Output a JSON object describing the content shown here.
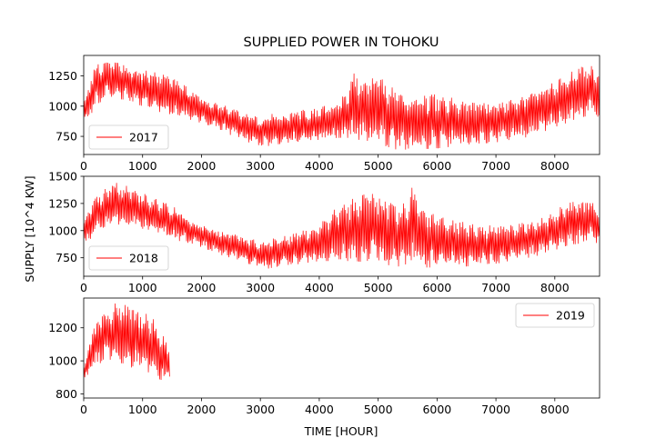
{
  "chart_data": {
    "type": "line",
    "title": "SUPPLIED POWER IN TOHOKU",
    "xlabel": "TIME [HOUR]",
    "ylabel": "SUPPLY [10^4 KW]",
    "line_color": "#ff0000",
    "panels": [
      {
        "series_name": "2017",
        "legend_position": "lower-left",
        "xlim": [
          0,
          8760
        ],
        "ylim": [
          600,
          1420
        ],
        "x_ticks": [
          0,
          1000,
          2000,
          3000,
          4000,
          5000,
          6000,
          7000,
          8000
        ],
        "y_ticks": [
          750,
          1000,
          1250
        ],
        "x_end": 8760,
        "envelope": [
          [
            0,
            820,
            1050
          ],
          [
            200,
            1000,
            1340
          ],
          [
            400,
            1080,
            1370
          ],
          [
            700,
            1050,
            1350
          ],
          [
            1000,
            1000,
            1300
          ],
          [
            1300,
            950,
            1270
          ],
          [
            1600,
            920,
            1210
          ],
          [
            2000,
            860,
            1080
          ],
          [
            2500,
            760,
            990
          ],
          [
            3000,
            660,
            920
          ],
          [
            3500,
            700,
            960
          ],
          [
            4000,
            720,
            980
          ],
          [
            4400,
            740,
            1080
          ],
          [
            4600,
            720,
            1280
          ],
          [
            4800,
            700,
            1210
          ],
          [
            5000,
            690,
            1250
          ],
          [
            5300,
            640,
            1130
          ],
          [
            5600,
            640,
            1080
          ],
          [
            6000,
            650,
            1100
          ],
          [
            6500,
            680,
            1040
          ],
          [
            7000,
            700,
            1030
          ],
          [
            7500,
            740,
            1090
          ],
          [
            8000,
            820,
            1200
          ],
          [
            8400,
            900,
            1320
          ],
          [
            8600,
            920,
            1340
          ],
          [
            8760,
            880,
            1280
          ]
        ]
      },
      {
        "series_name": "2018",
        "legend_position": "lower-left",
        "xlim": [
          0,
          8760
        ],
        "ylim": [
          580,
          1500
        ],
        "x_ticks": [
          0,
          1000,
          2000,
          3000,
          4000,
          5000,
          6000,
          7000,
          8000
        ],
        "y_ticks": [
          750,
          1000,
          1250,
          1500
        ],
        "x_end": 8760,
        "envelope": [
          [
            0,
            850,
            1100
          ],
          [
            200,
            980,
            1300
          ],
          [
            500,
            1040,
            1450
          ],
          [
            800,
            1030,
            1400
          ],
          [
            1100,
            1000,
            1320
          ],
          [
            1500,
            920,
            1230
          ],
          [
            1900,
            870,
            1080
          ],
          [
            2300,
            780,
            1000
          ],
          [
            2700,
            720,
            950
          ],
          [
            3000,
            640,
            900
          ],
          [
            3500,
            680,
            960
          ],
          [
            4000,
            720,
            1050
          ],
          [
            4300,
            720,
            1230
          ],
          [
            4600,
            720,
            1300
          ],
          [
            4900,
            700,
            1360
          ],
          [
            5200,
            680,
            1300
          ],
          [
            5400,
            660,
            1220
          ],
          [
            5600,
            690,
            1420
          ],
          [
            5800,
            660,
            1180
          ],
          [
            6200,
            660,
            1100
          ],
          [
            6800,
            680,
            1050
          ],
          [
            7300,
            720,
            1050
          ],
          [
            7800,
            780,
            1120
          ],
          [
            8200,
            860,
            1250
          ],
          [
            8600,
            900,
            1300
          ],
          [
            8760,
            880,
            1150
          ]
        ]
      },
      {
        "series_name": "2019",
        "legend_position": "upper-right",
        "xlim": [
          0,
          8760
        ],
        "ylim": [
          775,
          1380
        ],
        "x_ticks": [
          0,
          1000,
          2000,
          3000,
          4000,
          5000,
          6000,
          7000,
          8000
        ],
        "y_ticks": [
          800,
          1000,
          1200
        ],
        "x_end": 1460,
        "envelope": [
          [
            0,
            860,
            960
          ],
          [
            150,
            960,
            1180
          ],
          [
            350,
            1000,
            1310
          ],
          [
            550,
            1000,
            1350
          ],
          [
            800,
            960,
            1330
          ],
          [
            1000,
            960,
            1300
          ],
          [
            1200,
            900,
            1250
          ],
          [
            1350,
            880,
            1160
          ],
          [
            1460,
            880,
            1050
          ]
        ]
      }
    ]
  }
}
